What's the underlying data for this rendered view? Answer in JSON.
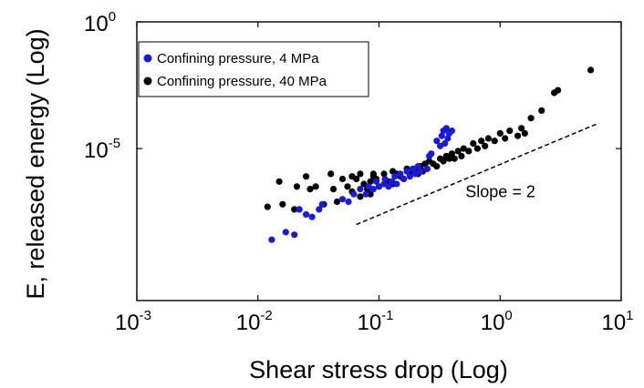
{
  "chart_data": {
    "type": "scatter",
    "xscale": "log",
    "yscale": "log",
    "xlim": [
      0.001,
      10
    ],
    "ylim_exp": [
      -11,
      0
    ],
    "xlabel": "Shear stress drop (Log)",
    "ylabel": "E, released energy (Log)",
    "x_ticks": [
      {
        "base": "10",
        "exp": "-3",
        "value": 0.001
      },
      {
        "base": "10",
        "exp": "-2",
        "value": 0.01
      },
      {
        "base": "10",
        "exp": "-1",
        "value": 0.1
      },
      {
        "base": "10",
        "exp": "0",
        "value": 1
      },
      {
        "base": "10",
        "exp": "1",
        "value": 10
      }
    ],
    "y_ticks": [
      {
        "base": "10",
        "exp": "0",
        "exp_value": 0
      },
      {
        "base": "10",
        "exp": "-5",
        "exp_value": -5
      }
    ],
    "legend": {
      "position": "top-left",
      "entries": [
        "Confining pressure, 4 MPa",
        "Confining pressure, 40 MPa"
      ]
    },
    "colors": {
      "4MPa": "#1a1adb",
      "40MPa": "#000000"
    },
    "annotation": {
      "text": "Slope = 2",
      "x": 0.5,
      "y_exp": -6.7
    },
    "reference_line": {
      "label": "Slope = 2",
      "x": [
        0.065,
        6.5
      ],
      "y_exp": [
        -8.0,
        -4.0
      ]
    },
    "series": [
      {
        "name": "Confining pressure, 4 MPa",
        "color": "#1a1adb",
        "x": [
          0.013,
          0.017,
          0.02,
          0.022,
          0.025,
          0.028,
          0.032,
          0.034,
          0.05,
          0.056,
          0.062,
          0.07,
          0.078,
          0.082,
          0.09,
          0.095,
          0.1,
          0.11,
          0.112,
          0.12,
          0.128,
          0.135,
          0.14,
          0.15,
          0.16,
          0.17,
          0.18,
          0.19,
          0.2,
          0.21,
          0.22,
          0.25,
          0.26,
          0.27,
          0.3,
          0.32,
          0.33,
          0.34,
          0.35,
          0.36,
          0.37,
          0.38,
          0.4
        ],
        "y_exp": [
          -8.6,
          -8.3,
          -8.4,
          -7.4,
          -7.6,
          -7.7,
          -7.4,
          -7.2,
          -7.0,
          -7.1,
          -6.8,
          -6.6,
          -6.8,
          -6.5,
          -6.6,
          -6.3,
          -6.5,
          -6.4,
          -6.2,
          -6.5,
          -6.3,
          -6.1,
          -6.4,
          -6.0,
          -6.2,
          -5.9,
          -6.1,
          -5.8,
          -6.0,
          -5.7,
          -5.9,
          -5.8,
          -5.3,
          -5.2,
          -4.7,
          -4.9,
          -4.5,
          -4.3,
          -4.8,
          -4.2,
          -4.6,
          -4.4,
          -4.3
        ]
      },
      {
        "name": "Confining pressure, 40 MPa",
        "color": "#000000",
        "x": [
          0.012,
          0.015,
          0.016,
          0.02,
          0.021,
          0.025,
          0.027,
          0.03,
          0.035,
          0.04,
          0.042,
          0.045,
          0.05,
          0.055,
          0.06,
          0.065,
          0.07,
          0.075,
          0.08,
          0.085,
          0.09,
          0.095,
          0.1,
          0.11,
          0.12,
          0.13,
          0.14,
          0.15,
          0.16,
          0.17,
          0.18,
          0.19,
          0.2,
          0.21,
          0.22,
          0.23,
          0.24,
          0.25,
          0.26,
          0.28,
          0.3,
          0.32,
          0.34,
          0.36,
          0.38,
          0.4,
          0.42,
          0.45,
          0.48,
          0.5,
          0.55,
          0.6,
          0.65,
          0.7,
          0.75,
          0.8,
          0.9,
          1.0,
          1.1,
          1.2,
          1.4,
          1.5,
          1.6,
          1.8,
          2.2,
          2.8,
          3.0,
          5.6,
          0.07,
          0.085,
          0.06,
          0.09,
          0.13
        ],
        "y_exp": [
          -7.3,
          -6.3,
          -7.2,
          -7.4,
          -6.5,
          -6.1,
          -6.6,
          -6.5,
          -7.2,
          -6.0,
          -6.6,
          -7.1,
          -6.2,
          -6.5,
          -6.7,
          -6.2,
          -6.0,
          -6.4,
          -6.6,
          -6.3,
          -6.1,
          -6.2,
          -6.5,
          -6.0,
          -6.3,
          -6.4,
          -6.0,
          -6.1,
          -6.2,
          -5.8,
          -6.0,
          -5.9,
          -5.8,
          -6.0,
          -5.7,
          -5.9,
          -5.6,
          -5.8,
          -5.5,
          -5.6,
          -5.7,
          -5.4,
          -5.5,
          -5.3,
          -5.4,
          -5.2,
          -5.4,
          -5.1,
          -5.3,
          -5.0,
          -5.1,
          -4.8,
          -5.0,
          -4.7,
          -4.9,
          -4.6,
          -4.7,
          -4.4,
          -4.6,
          -4.3,
          -4.5,
          -4.2,
          -4.4,
          -3.8,
          -3.5,
          -2.8,
          -2.7,
          -1.9,
          -6.9,
          -6.8,
          -6.1,
          -6.0,
          -5.9
        ]
      }
    ]
  }
}
